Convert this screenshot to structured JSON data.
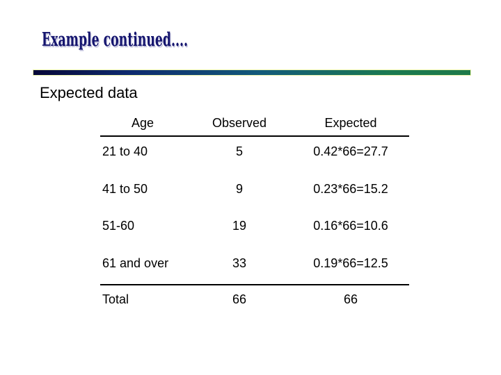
{
  "slide": {
    "title": "Example continued....",
    "subtitle": "Expected data",
    "colors": {
      "title_navy": "#14146e",
      "title_shadow": "#c3c3dd",
      "rule_gradient_left": "#070738",
      "rule_gradient_mid": "#135a7a",
      "rule_gradient_right": "#1e7a4a",
      "rule_outline": "#edf5ab",
      "text": "#000000",
      "background": "#ffffff"
    }
  },
  "table": {
    "headers": [
      "Age",
      "Observed",
      "Expected"
    ],
    "rows": [
      {
        "age": "21 to 40",
        "observed": "5",
        "expected": "0.42*66=27.7"
      },
      {
        "age": "41 to 50",
        "observed": "9",
        "expected": "0.23*66=15.2"
      },
      {
        "age": "51-60",
        "observed": "19",
        "expected": "0.16*66=10.6"
      },
      {
        "age": "61 and over",
        "observed": "33",
        "expected": "0.19*66=12.5"
      }
    ],
    "total_row": {
      "age": "Total",
      "observed": "66",
      "expected": "66"
    }
  }
}
